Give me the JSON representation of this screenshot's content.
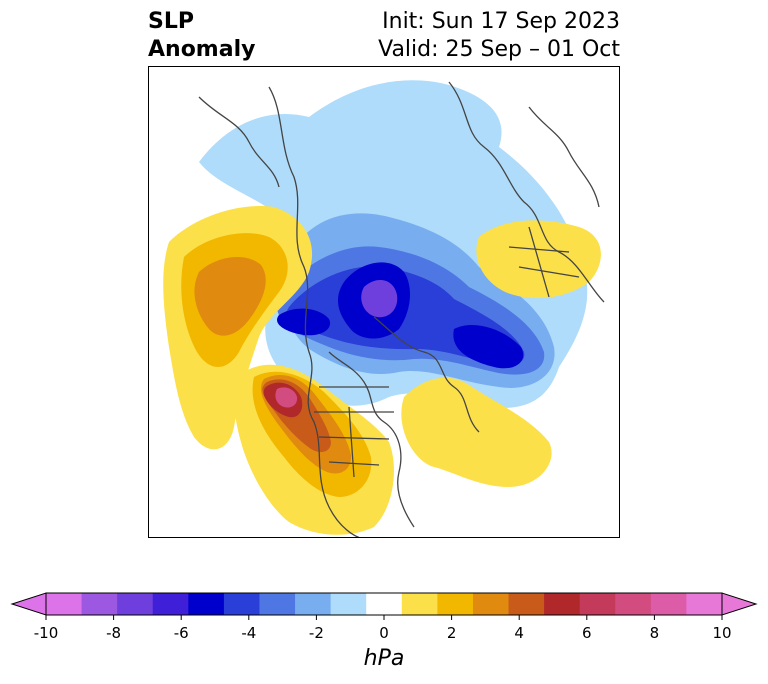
{
  "title": {
    "line1": "SLP",
    "line2": "Anomaly",
    "init": "Init: Sun 17 Sep 2023",
    "valid": "Valid: 25 Sep – 01 Oct"
  },
  "colorbar": {
    "unit": "hPa",
    "min": -10,
    "max": 10,
    "extend": "both",
    "tick_labels": [
      "-10",
      "-8",
      "-6",
      "-4",
      "-2",
      "0",
      "2",
      "4",
      "6",
      "8",
      "10"
    ],
    "colors": [
      "#dc73e8",
      "#9c58e0",
      "#6e3fdc",
      "#3f1fd8",
      "#0000cc",
      "#2a3ed8",
      "#4f77e4",
      "#78aef0",
      "#aedcfa",
      "#ffffff",
      "#fce04a",
      "#f2b800",
      "#e08a10",
      "#c95b1a",
      "#b0282a",
      "#c43a5a",
      "#d24c80",
      "#dc5ca8",
      "#e878d8"
    ],
    "under_color": "#dc73e8",
    "over_color": "#e878d8"
  },
  "map": {
    "projection": "north-polar-stereographic",
    "field": "SLP anomaly"
  }
}
